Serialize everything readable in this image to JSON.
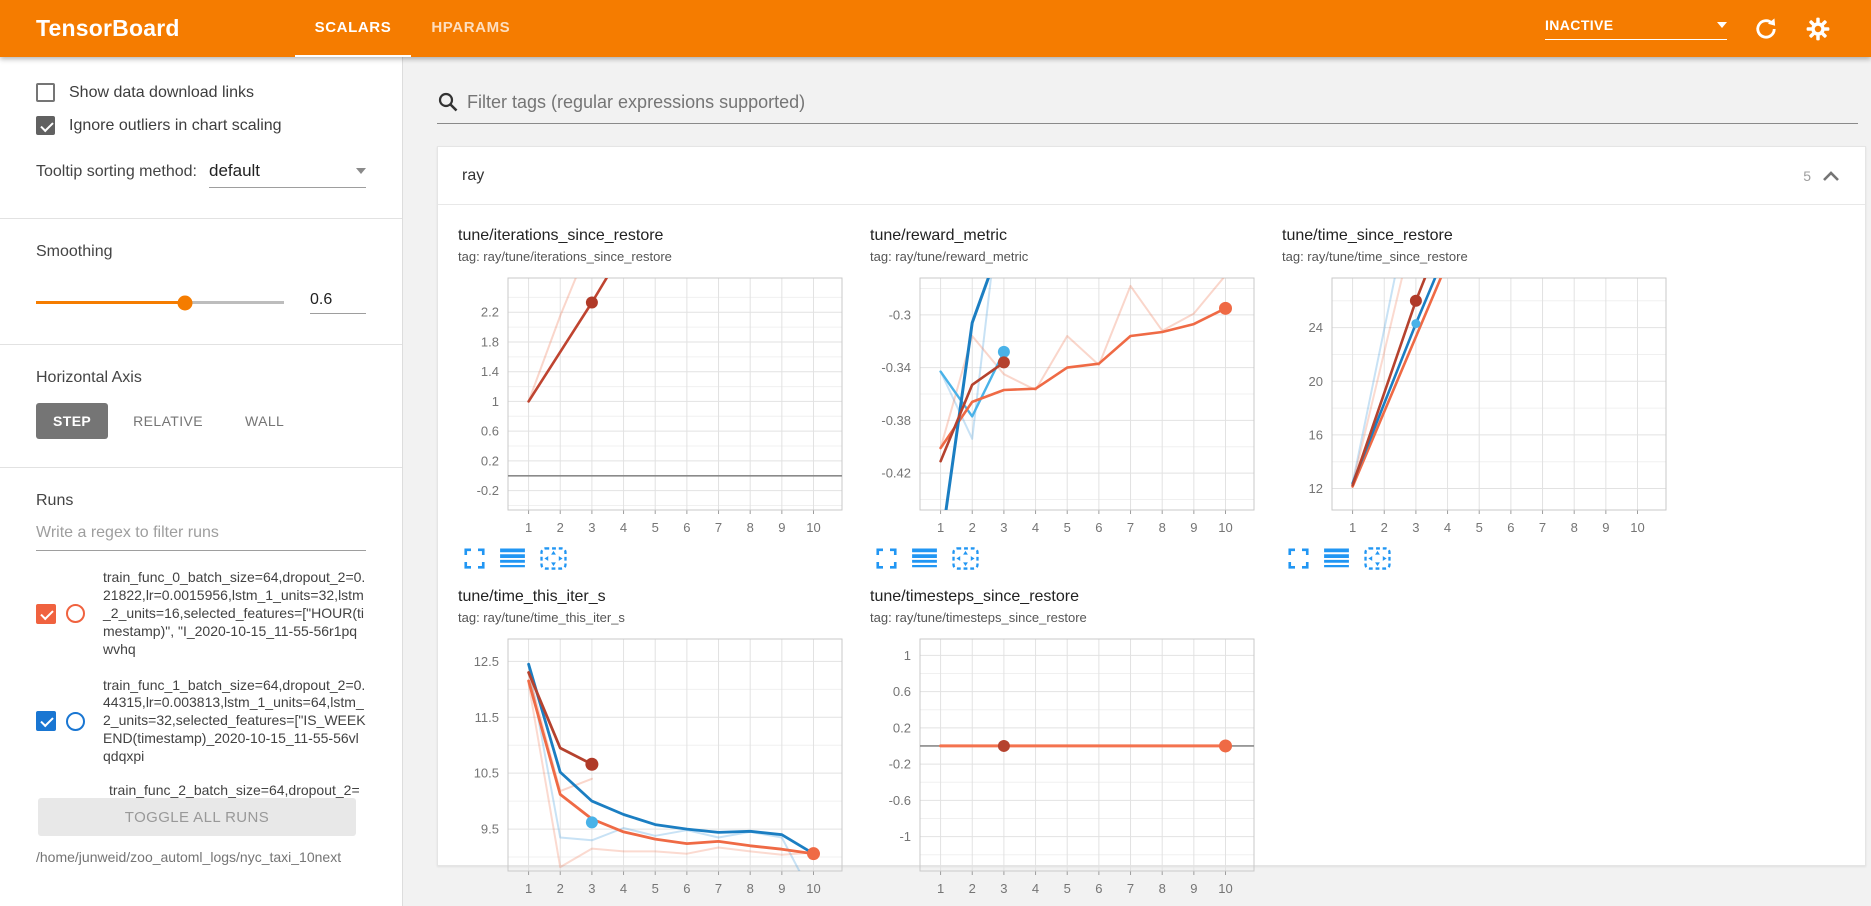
{
  "header": {
    "title": "TensorBoard",
    "tabs": [
      {
        "label": "SCALARS",
        "active": true
      },
      {
        "label": "HPARAMS",
        "active": false
      }
    ],
    "status": "INACTIVE"
  },
  "sidebar": {
    "checkboxes": [
      {
        "label": "Show data download links",
        "checked": false
      },
      {
        "label": "Ignore outliers in chart scaling",
        "checked": true
      }
    ],
    "tooltip_sorting": {
      "label": "Tooltip sorting method:",
      "value": "default"
    },
    "smoothing": {
      "label": "Smoothing",
      "value": "0.6",
      "percent": 60
    },
    "horizontal_axis": {
      "label": "Horizontal Axis",
      "options": [
        "STEP",
        "RELATIVE",
        "WALL"
      ],
      "selected": "STEP"
    },
    "runs": {
      "label": "Runs",
      "filter_placeholder": "Write a regex to filter runs",
      "items": [
        {
          "name": "train_func_0_batch_size=64,dropout_2=0.21822,lr=0.0015956,lstm_1_units=32,lstm_2_units=16,selected_features=[\"HOUR(timestamp)\", \"I_2020-10-15_11-55-56r1pqwvhq",
          "checked": true,
          "color": "#f0623f"
        },
        {
          "name": "train_func_1_batch_size=64,dropout_2=0.44315,lr=0.003813,lstm_1_units=64,lstm_2_units=32,selected_features=[\"IS_WEEKEND(timestamp)_2020-10-15_11-55-56vlqdqxpi",
          "checked": true,
          "color": "#1976d2"
        },
        {
          "name": "train_func_2_batch_size=64,dropout_2=",
          "checked": true,
          "color": "#e57373"
        }
      ],
      "toggle_all_label": "TOGGLE ALL RUNS",
      "log_dir": "/home/junweid/zoo_automl_logs/nyc_taxi_10next"
    }
  },
  "main": {
    "filter_placeholder": "Filter tags (regular expressions supported)",
    "section": {
      "name": "ray",
      "count": "5"
    }
  },
  "colors": {
    "accent": "#f57c00",
    "icon_blue": "#2196f3",
    "run_orange": "#ef6a45",
    "run_dark_red": "#b5422e",
    "run_blue": "#1b7ec2",
    "run_cyan": "#49b2e8"
  },
  "chart_data": [
    {
      "type": "line",
      "title": "tune/iterations_since_restore",
      "tag": "tag: ray/tune/iterations_since_restore",
      "xlim": [
        0.35,
        10.9
      ],
      "xticks": [
        1,
        2,
        3,
        4,
        5,
        6,
        7,
        8,
        9,
        10
      ],
      "ylim": [
        -0.46,
        2.66
      ],
      "yticks": [
        -0.2,
        0.2,
        0.6,
        1,
        1.4,
        1.8,
        2.2
      ],
      "series": [
        {
          "name": "zero-baseline",
          "color": "#8a8a8a",
          "width": 1.6,
          "points": [
            [
              0.35,
              0
            ],
            [
              10.9,
              0
            ]
          ]
        },
        {
          "name": "train_func_0 (raw)",
          "color": "rgba(238,106,69,0.28)",
          "width": 2,
          "points": [
            [
              1,
              1
            ],
            [
              2,
              2.15
            ],
            [
              2.55,
              2.72
            ]
          ]
        },
        {
          "name": "train_func_0 (smoothed)",
          "color": "#bf4430",
          "width": 2.6,
          "points": [
            [
              1,
              1
            ],
            [
              3,
              2.33
            ],
            [
              3.55,
              2.72
            ]
          ]
        }
      ],
      "dots": [
        {
          "x": 3,
          "y": 2.33,
          "r": 6,
          "color": "#b03a28"
        }
      ]
    },
    {
      "type": "line",
      "title": "tune/reward_metric",
      "tag": "tag: ray/tune/reward_metric",
      "xlim": [
        0.35,
        10.9
      ],
      "xticks": [
        1,
        2,
        3,
        4,
        5,
        6,
        7,
        8,
        9,
        10
      ],
      "ylim": [
        -0.448,
        -0.272
      ],
      "yticks": [
        -0.42,
        -0.38,
        -0.34,
        -0.3
      ],
      "series": [
        {
          "name": "train_func_1 (raw)",
          "color": "rgba(73,160,222,0.3)",
          "width": 2,
          "points": [
            [
              1,
              -0.343
            ],
            [
              2,
              -0.394
            ],
            [
              2.62,
              -0.266
            ]
          ]
        },
        {
          "name": "orange run (raw)",
          "color": "rgba(238,106,69,0.28)",
          "width": 2,
          "points": [
            [
              1,
              -0.401
            ],
            [
              2,
              -0.316
            ],
            [
              3,
              -0.345
            ],
            [
              4,
              -0.357
            ],
            [
              5,
              -0.316
            ],
            [
              6,
              -0.338
            ],
            [
              7,
              -0.278
            ],
            [
              8,
              -0.312
            ],
            [
              9,
              -0.299
            ],
            [
              10,
              -0.27
            ]
          ]
        },
        {
          "name": "cyan run",
          "color": "#49b2e8",
          "width": 2.4,
          "points": [
            [
              1,
              -0.343
            ],
            [
              2,
              -0.377
            ],
            [
              3,
              -0.328
            ]
          ]
        },
        {
          "name": "orange run (smoothed)",
          "color": "#ef6a45",
          "width": 2.6,
          "points": [
            [
              1,
              -0.401
            ],
            [
              2,
              -0.366
            ],
            [
              3,
              -0.357
            ],
            [
              4,
              -0.356
            ],
            [
              5,
              -0.34
            ],
            [
              6,
              -0.337
            ],
            [
              7,
              -0.316
            ],
            [
              8,
              -0.313
            ],
            [
              9,
              -0.307
            ],
            [
              10,
              -0.295
            ]
          ]
        },
        {
          "name": "train_func_1 (smoothed)",
          "color": "#1b7ec2",
          "width": 3,
          "points": [
            [
              1.15,
              -0.452
            ],
            [
              2,
              -0.306
            ],
            [
              2.6,
              -0.266
            ]
          ]
        },
        {
          "name": "train_func_0 (smoothed)",
          "color": "#b5422e",
          "width": 2.6,
          "points": [
            [
              1,
              -0.411
            ],
            [
              2,
              -0.353
            ],
            [
              3,
              -0.336
            ]
          ]
        }
      ],
      "dots": [
        {
          "x": 3,
          "y": -0.328,
          "r": 6,
          "color": "#49b2e8"
        },
        {
          "x": 3,
          "y": -0.336,
          "r": 6,
          "color": "#b5422e"
        },
        {
          "x": 10,
          "y": -0.295,
          "r": 6.5,
          "color": "#ef6a45"
        }
      ]
    },
    {
      "type": "line",
      "title": "tune/time_since_restore",
      "tag": "tag: ray/tune/time_since_restore",
      "xlim": [
        0.35,
        10.9
      ],
      "xticks": [
        1,
        2,
        3,
        4,
        5,
        6,
        7,
        8,
        9,
        10
      ],
      "ylim": [
        10.4,
        27.7
      ],
      "yticks": [
        12,
        16,
        20,
        24
      ],
      "series": [
        {
          "name": "blue (raw)",
          "color": "rgba(73,160,222,0.3)",
          "width": 2,
          "points": [
            [
              1,
              12.4
            ],
            [
              2.35,
              27.9
            ]
          ]
        },
        {
          "name": "orange (raw)",
          "color": "rgba(238,106,69,0.25)",
          "width": 2,
          "points": [
            [
              1,
              12.3
            ],
            [
              2.58,
              27.9
            ]
          ]
        },
        {
          "name": "orange (smoothed)",
          "color": "#ef6a45",
          "width": 2.6,
          "points": [
            [
              1,
              12.15
            ],
            [
              3.82,
              27.9
            ]
          ]
        },
        {
          "name": "train_func_1 (smoothed)",
          "color": "#1b7ec2",
          "width": 2.6,
          "points": [
            [
              1,
              12.4
            ],
            [
              3,
              24.3
            ],
            [
              3.64,
              27.9
            ]
          ]
        },
        {
          "name": "train_func_0 (smoothed)",
          "color": "#b5422e",
          "width": 2.6,
          "points": [
            [
              1,
              12.25
            ],
            [
              3,
              26.0
            ],
            [
              3.32,
              27.9
            ]
          ]
        }
      ],
      "dots": [
        {
          "x": 3,
          "y": 26.0,
          "r": 6,
          "color": "#b03a28"
        },
        {
          "x": 3,
          "y": 24.3,
          "r": 4.5,
          "color": "#49b2e8"
        }
      ]
    },
    {
      "type": "line",
      "title": "tune/time_this_iter_s",
      "tag": "tag: ray/tune/time_this_iter_s",
      "xlim": [
        0.35,
        10.9
      ],
      "xticks": [
        1,
        2,
        3,
        4,
        5,
        6,
        7,
        8,
        9,
        10
      ],
      "ylim": [
        8.75,
        12.9
      ],
      "yticks": [
        9.5,
        10.5,
        11.5,
        12.5
      ],
      "series": [
        {
          "name": "blue (raw)",
          "color": "rgba(73,160,222,0.3)",
          "width": 2,
          "points": [
            [
              1,
              12.42
            ],
            [
              2,
              9.35
            ],
            [
              3,
              9.3
            ],
            [
              4,
              9.52
            ],
            [
              5,
              9.38
            ],
            [
              6,
              9.48
            ],
            [
              7,
              9.35
            ],
            [
              8,
              9.45
            ],
            [
              9,
              9.35
            ],
            [
              9.6,
              8.7
            ]
          ]
        },
        {
          "name": "train_func_0 (raw)",
          "color": "rgba(238,106,69,0.28)",
          "width": 2,
          "points": [
            [
              1,
              12.28
            ],
            [
              2,
              10.18
            ],
            [
              3,
              10.4
            ]
          ]
        },
        {
          "name": "orange (raw)",
          "color": "rgba(238,106,69,0.25)",
          "width": 2,
          "points": [
            [
              1,
              12.1
            ],
            [
              2,
              8.82
            ],
            [
              3,
              9.15
            ],
            [
              4,
              9.1
            ],
            [
              5,
              9.1
            ],
            [
              6,
              9.06
            ],
            [
              7,
              9.17
            ],
            [
              8,
              9.1
            ],
            [
              9,
              9.04
            ],
            [
              10,
              9.08
            ]
          ]
        },
        {
          "name": "train_func_1 (smoothed)",
          "color": "#1b7ec2",
          "width": 2.8,
          "points": [
            [
              1,
              12.45
            ],
            [
              2,
              10.52
            ],
            [
              3,
              10.0
            ],
            [
              4,
              9.76
            ],
            [
              5,
              9.58
            ],
            [
              6,
              9.5
            ],
            [
              7,
              9.44
            ],
            [
              8,
              9.46
            ],
            [
              9,
              9.4
            ],
            [
              10,
              9.06
            ]
          ]
        },
        {
          "name": "orange (smoothed)",
          "color": "#ef6a45",
          "width": 2.8,
          "points": [
            [
              1,
              12.15
            ],
            [
              2,
              10.12
            ],
            [
              3,
              9.68
            ],
            [
              4,
              9.45
            ],
            [
              5,
              9.32
            ],
            [
              6,
              9.24
            ],
            [
              7,
              9.28
            ],
            [
              8,
              9.2
            ],
            [
              9,
              9.14
            ],
            [
              10,
              9.06
            ]
          ]
        },
        {
          "name": "train_func_0 (smoothed)",
          "color": "#b5422e",
          "width": 2.8,
          "points": [
            [
              1,
              12.3
            ],
            [
              2,
              10.95
            ],
            [
              3,
              10.66
            ]
          ]
        }
      ],
      "dots": [
        {
          "x": 3,
          "y": 10.66,
          "r": 6.5,
          "color": "#b03a28"
        },
        {
          "x": 3,
          "y": 9.62,
          "r": 6,
          "color": "#49b2e8"
        },
        {
          "x": 10,
          "y": 9.06,
          "r": 6.5,
          "color": "#ef6a45"
        }
      ]
    },
    {
      "type": "line",
      "title": "tune/timesteps_since_restore",
      "tag": "tag: ray/tune/timesteps_since_restore",
      "xlim": [
        0.35,
        10.9
      ],
      "xticks": [
        1,
        2,
        3,
        4,
        5,
        6,
        7,
        8,
        9,
        10
      ],
      "ylim": [
        -1.38,
        1.18
      ],
      "yticks": [
        -1,
        -0.6,
        -0.2,
        0.2,
        0.6,
        1
      ],
      "series": [
        {
          "name": "zero-baseline",
          "color": "#8a8a8a",
          "width": 1.6,
          "points": [
            [
              0.35,
              0
            ],
            [
              10.9,
              0
            ]
          ]
        },
        {
          "name": "orange (smoothed)",
          "color": "#f4734f",
          "width": 3,
          "points": [
            [
              1,
              0
            ],
            [
              10,
              0
            ]
          ]
        }
      ],
      "dots": [
        {
          "x": 3,
          "y": 0,
          "r": 6,
          "color": "#b5422e"
        },
        {
          "x": 10,
          "y": 0,
          "r": 6.5,
          "color": "#ef6a45"
        }
      ]
    }
  ]
}
